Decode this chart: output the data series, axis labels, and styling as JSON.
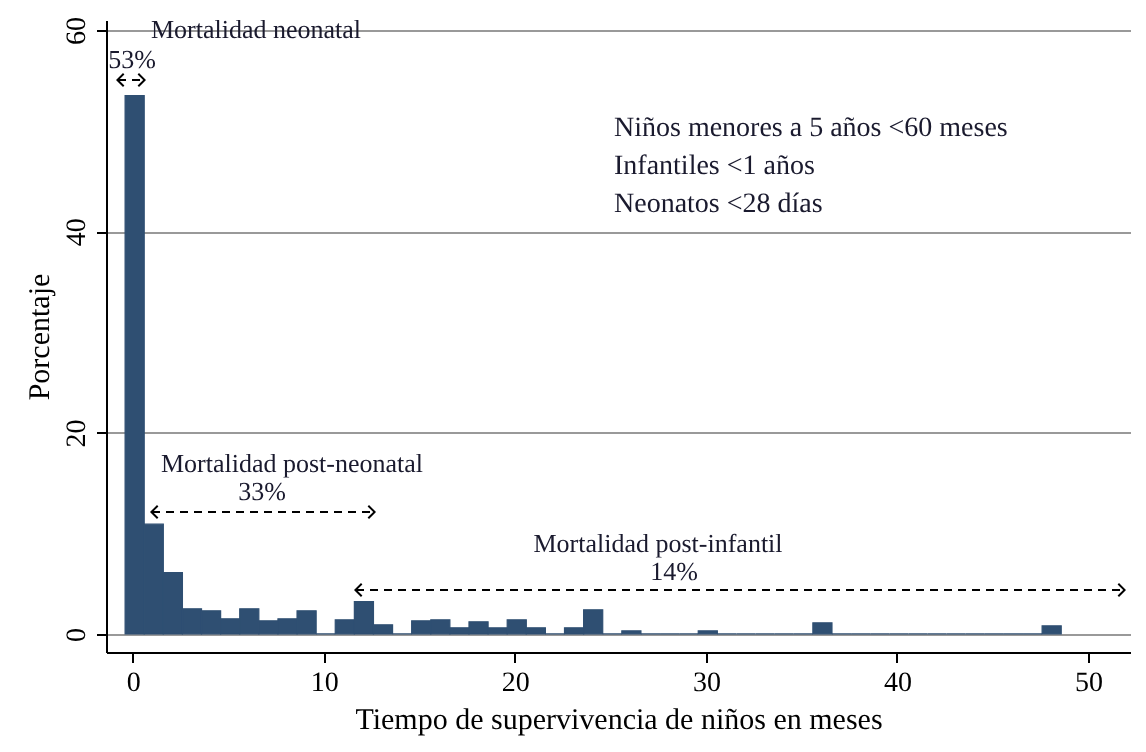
{
  "chart_data": {
    "type": "histogram",
    "xlabel": "Tiempo de supervivencia de niños en meses",
    "ylabel": "Porcentaje",
    "bins": [
      -0.4,
      0.6,
      1.6,
      2.6,
      3.6,
      4.6,
      5.6,
      6.6,
      7.6,
      8.6,
      9.6,
      10.6,
      11.6,
      12.6,
      13.6,
      14.6,
      15.6,
      16.6,
      17.6,
      18.6,
      19.6,
      20.6,
      21.6,
      22.6,
      23.6,
      24.6,
      25.6,
      26.6,
      27.6,
      28.6,
      29.6,
      30.6,
      31.6,
      32.6,
      33.6,
      34.6,
      35.6,
      36.6,
      37.6,
      38.6,
      39.6,
      40.6,
      41.6,
      42.6,
      43.6,
      44.6,
      45.6,
      46.6,
      47.6,
      48.6
    ],
    "values": [
      53.5,
      10.9,
      6.1,
      2.5,
      2.3,
      1.5,
      2.5,
      1.3,
      1.5,
      2.3,
      0,
      1.4,
      3.2,
      0.9,
      0,
      1.3,
      1.4,
      0.6,
      1.2,
      0.6,
      1.4,
      0.6,
      0,
      0.6,
      2.4,
      0,
      0.3,
      0,
      0,
      0,
      0.3,
      0,
      0,
      0,
      0,
      0,
      1.1,
      0,
      0,
      0,
      0,
      0,
      0,
      0,
      0,
      0,
      0,
      0,
      0.8
    ],
    "color": "#2f4f72",
    "xlim": [
      -1.4,
      52.2
    ],
    "xticks": [
      0,
      10,
      20,
      30,
      40,
      50
    ],
    "ylim": [
      -1.8,
      61
    ],
    "yticks": [
      0,
      20,
      40,
      60
    ],
    "grid": "y",
    "annotations": [
      "Mortalidad neonatal",
      "53%",
      "Mortalidad post-neonatal",
      "33%",
      "Mortalidad post-infantil",
      "14%",
      "Niños menores a 5 años <60 meses",
      "Infantiles <1 años",
      "Neonatos <28 días"
    ]
  }
}
